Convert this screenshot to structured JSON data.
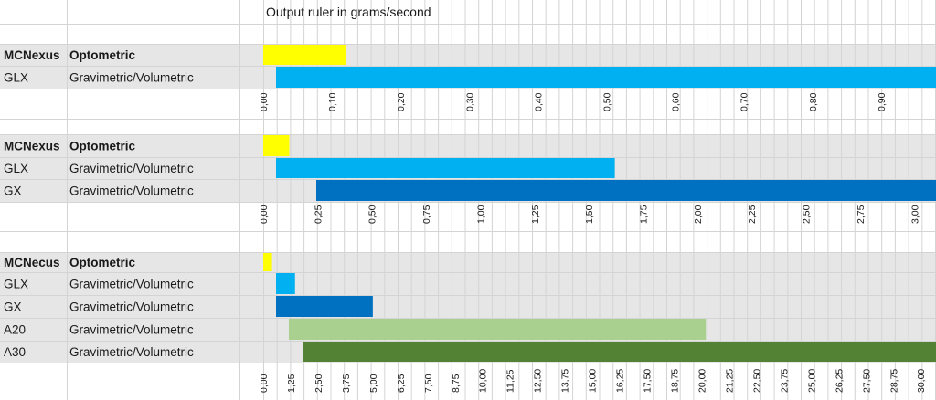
{
  "sheet_title": "Output ruler in grams/second",
  "colors": {
    "band": "#e7e6e7",
    "grid": "#d4d4d4",
    "optometric": "#ffff00",
    "GLX": "#00b0f0",
    "GX": "#0070c0",
    "A20": "#a9d08e",
    "A30": "#548235"
  },
  "chart_data": [
    {
      "type": "bar",
      "orientation": "horizontal",
      "group": {
        "brand": "MCNexus",
        "category": "Optometric"
      },
      "series": [
        {
          "name": "Optometric",
          "model": "",
          "values": [
            0.12
          ]
        },
        {
          "name": "GLX",
          "model": "GLX",
          "method": "Gravimetric/Volumetric",
          "values": [
            1.0
          ]
        }
      ],
      "ticks": [
        "0,00",
        "0,10",
        "0,20",
        "0,30",
        "0,40",
        "0,50",
        "0,60",
        "0,70",
        "0,80",
        "0,90"
      ],
      "xlim": [
        0,
        0.98
      ],
      "xlabel": "grams/second"
    },
    {
      "type": "bar",
      "orientation": "horizontal",
      "group": {
        "brand": "MCNexus",
        "category": "Optometric"
      },
      "series": [
        {
          "name": "Optometric",
          "model": "",
          "values": [
            0.12
          ]
        },
        {
          "name": "GLX",
          "model": "GLX",
          "method": "Gravimetric/Volumetric",
          "values": [
            1.62
          ]
        },
        {
          "name": "GX",
          "model": "GX",
          "method": "Gravimetric/Volumetric",
          "values": [
            3.2
          ]
        }
      ],
      "ticks": [
        "0,00",
        "0,25",
        "0,50",
        "0,75",
        "1,00",
        "1,25",
        "1,50",
        "1,75",
        "2,00",
        "2,25",
        "2,50",
        "2,75",
        "3,00"
      ],
      "xlim": [
        0,
        3.1
      ],
      "xlabel": "grams/second"
    },
    {
      "type": "bar",
      "orientation": "horizontal",
      "group": {
        "brand": "MCNecus",
        "category": "Optometric"
      },
      "series": [
        {
          "name": "Optometric",
          "model": "",
          "values": [
            0.4
          ]
        },
        {
          "name": "GLX",
          "model": "GLX",
          "method": "Gravimetric/Volumetric",
          "values": [
            1.45
          ]
        },
        {
          "name": "GX",
          "model": "GX",
          "method": "Gravimetric/Volumetric",
          "values": [
            5.0
          ]
        },
        {
          "name": "A20",
          "model": "A20",
          "method": "Gravimetric/Volumetric",
          "values": [
            20.2
          ]
        },
        {
          "name": "A30",
          "model": "A30",
          "method": "Gravimetric/Volumetric",
          "values": [
            31.0
          ]
        }
      ],
      "ticks": [
        "0,00",
        "1,25",
        "2,50",
        "3,75",
        "5,00",
        "6,25",
        "7,50",
        "8,75",
        "10,00",
        "11,25",
        "12,50",
        "13,75",
        "15,00",
        "16,25",
        "17,50",
        "18,75",
        "20,00",
        "21,25",
        "22,50",
        "23,75",
        "25,00",
        "26,25",
        "27,50",
        "28,75",
        "30,00"
      ],
      "xlim": [
        0,
        30.7
      ],
      "xlabel": "grams/second"
    }
  ]
}
